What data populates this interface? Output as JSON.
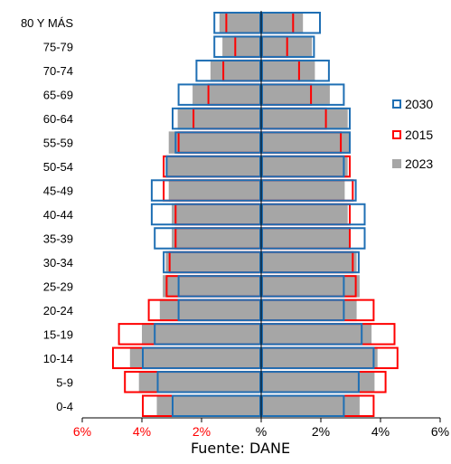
{
  "chart_data": {
    "type": "bar",
    "subtype": "population-pyramid",
    "categories": [
      "80 Y MÁS",
      "75-79",
      "70-74",
      "65-69",
      "60-64",
      "55-59",
      "50-54",
      "45-49",
      "40-44",
      "35-39",
      "30-34",
      "25-29",
      "20-24",
      "15-19",
      "10-14",
      "5-9",
      "0-4"
    ],
    "series": [
      {
        "name": "2023",
        "color": "#a6a6a6",
        "style": "filled",
        "left": [
          1.4,
          1.3,
          1.7,
          2.3,
          2.8,
          3.1,
          3.2,
          3.1,
          3.0,
          3.0,
          3.2,
          3.3,
          3.4,
          4.0,
          4.4,
          4.1,
          3.5
        ],
        "right": [
          1.4,
          1.7,
          1.8,
          2.3,
          2.9,
          3.0,
          2.9,
          2.8,
          2.9,
          3.0,
          3.2,
          3.3,
          3.2,
          3.7,
          3.9,
          3.8,
          3.3
        ]
      },
      {
        "name": "2015",
        "color": "#ff0000",
        "style": "outline",
        "left": [
          1.2,
          0.9,
          1.3,
          1.8,
          2.3,
          2.8,
          3.3,
          3.3,
          2.9,
          2.9,
          3.1,
          3.2,
          3.8,
          4.8,
          5.0,
          4.6,
          4.0
        ],
        "right": [
          1.1,
          0.9,
          1.3,
          1.7,
          2.2,
          2.7,
          3.0,
          3.1,
          3.0,
          3.0,
          3.1,
          3.2,
          3.8,
          4.5,
          4.6,
          4.2,
          3.8
        ]
      },
      {
        "name": "2030",
        "color": "#1f6fb4",
        "style": "outline",
        "left": [
          1.6,
          1.6,
          2.2,
          2.8,
          3.0,
          2.9,
          3.2,
          3.7,
          3.7,
          3.6,
          3.3,
          2.8,
          2.8,
          3.6,
          4.0,
          3.5,
          3.0
        ],
        "right": [
          2.0,
          1.8,
          2.3,
          2.8,
          3.0,
          3.0,
          2.8,
          3.2,
          3.5,
          3.5,
          3.3,
          2.8,
          2.8,
          3.4,
          3.8,
          3.3,
          2.8
        ]
      }
    ],
    "xlim": [
      -6,
      6
    ],
    "xticks": [
      {
        "value": -6,
        "label": "6%",
        "color": "#ff0000"
      },
      {
        "value": -4,
        "label": "4%",
        "color": "#ff0000"
      },
      {
        "value": -2,
        "label": "2%",
        "color": "#ff0000"
      },
      {
        "value": 0,
        "label": "%",
        "color": "#000000"
      },
      {
        "value": 2,
        "label": "2%",
        "color": "#000000"
      },
      {
        "value": 4,
        "label": "4%",
        "color": "#000000"
      },
      {
        "value": 6,
        "label": "6%",
        "color": "#000000"
      }
    ],
    "legend": {
      "position": "right",
      "entries": [
        {
          "label": "2030",
          "color": "#1f6fb4",
          "style": "outline"
        },
        {
          "label": "2015",
          "color": "#ff0000",
          "style": "outline"
        },
        {
          "label": "2023",
          "color": "#a6a6a6",
          "style": "filled"
        }
      ]
    },
    "grid": false
  },
  "source_note": "Fuente: DANE"
}
